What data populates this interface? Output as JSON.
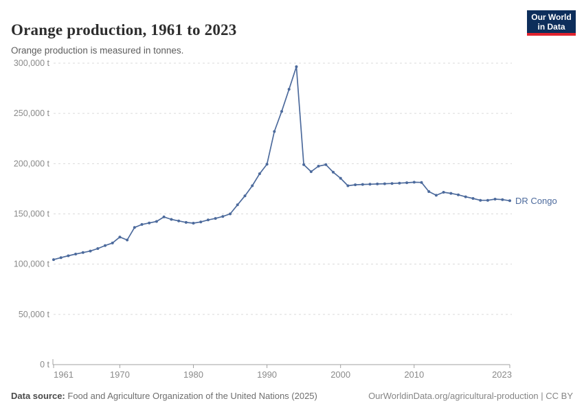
{
  "header": {
    "title": "Orange production, 1961 to 2023",
    "subtitle": "Orange production is measured in tonnes.",
    "logo": {
      "line1": "Our World",
      "line2": "in Data"
    }
  },
  "footer": {
    "source_label": "Data source:",
    "source_text": "Food and Agriculture Organization of the United Nations (2025)",
    "attribution": "OurWorldinData.org/agricultural-production | CC BY"
  },
  "chart_data": {
    "type": "line",
    "title": "Orange production, 1961 to 2023",
    "subtitle": "Orange production is measured in tonnes.",
    "xlabel": "",
    "ylabel": "",
    "unit": "t",
    "x_domain": [
      1961,
      2023
    ],
    "ylim": [
      0,
      300000
    ],
    "grid": "horizontal-dashed",
    "legend_position": "end-of-line-label",
    "x_ticks": [
      1961,
      1970,
      1980,
      1990,
      2000,
      2010,
      2023
    ],
    "y_ticks": {
      "values": [
        0,
        50000,
        100000,
        150000,
        200000,
        250000,
        300000
      ],
      "labels": [
        "0 t",
        "50,000 t",
        "100,000 t",
        "150,000 t",
        "200,000 t",
        "250,000 t",
        "300,000 t"
      ]
    },
    "series": [
      {
        "name": "DR Congo",
        "color": "#4C6A9C",
        "years": [
          1961,
          1962,
          1963,
          1964,
          1965,
          1966,
          1967,
          1968,
          1969,
          1970,
          1971,
          1972,
          1973,
          1974,
          1975,
          1976,
          1977,
          1978,
          1979,
          1980,
          1981,
          1982,
          1983,
          1984,
          1985,
          1986,
          1987,
          1988,
          1989,
          1990,
          1991,
          1992,
          1993,
          1994,
          1995,
          1996,
          1997,
          1998,
          1999,
          2000,
          2001,
          2002,
          2003,
          2004,
          2005,
          2006,
          2007,
          2008,
          2009,
          2010,
          2011,
          2012,
          2013,
          2014,
          2015,
          2016,
          2017,
          2018,
          2019,
          2020,
          2021,
          2022,
          2023
        ],
        "values": [
          104500,
          106500,
          108300,
          110000,
          111500,
          113000,
          115500,
          118500,
          121000,
          127000,
          124000,
          136500,
          139500,
          141000,
          142500,
          147000,
          144500,
          143000,
          141500,
          140800,
          142000,
          144000,
          145500,
          147500,
          150000,
          159000,
          168000,
          178000,
          190000,
          199500,
          232000,
          252000,
          274000,
          296500,
          199000,
          192000,
          197500,
          199000,
          191500,
          185500,
          178000,
          179000,
          179300,
          179500,
          179800,
          180000,
          180300,
          180600,
          181000,
          181500,
          181300,
          172200,
          168500,
          171500,
          170400,
          169000,
          167000,
          165400,
          163500,
          163500,
          164700,
          164200,
          163100
        ]
      }
    ],
    "colors": {
      "line": "#4C6A9C",
      "gridline": "#dadada",
      "axis": "#a1a1a1",
      "tick_label": "#8a8a8a"
    }
  }
}
